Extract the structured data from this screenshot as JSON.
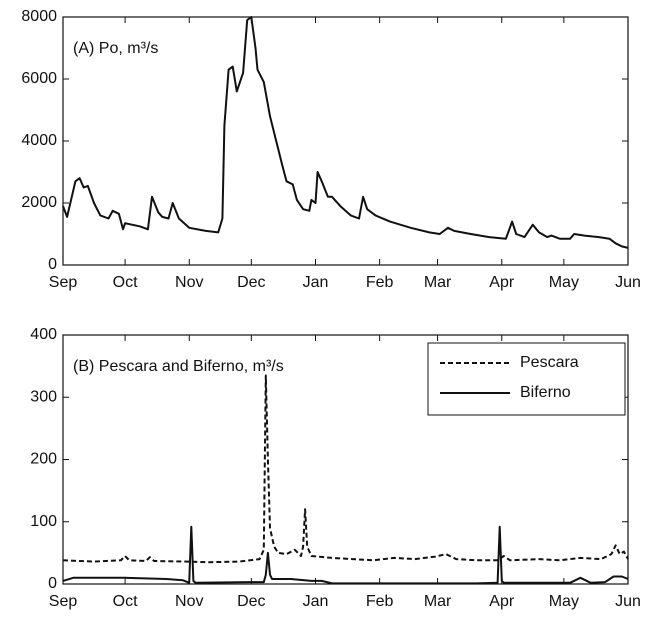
{
  "chart_data": [
    {
      "type": "line",
      "annotation": "(A) Po, m³/s",
      "xlim": [
        0,
        273
      ],
      "xticks": [
        {
          "value": 0,
          "label": "Sep"
        },
        {
          "value": 30,
          "label": "Oct"
        },
        {
          "value": 61,
          "label": "Nov"
        },
        {
          "value": 91,
          "label": "Dec"
        },
        {
          "value": 122,
          "label": "Jan"
        },
        {
          "value": 153,
          "label": "Feb"
        },
        {
          "value": 181,
          "label": "Mar"
        },
        {
          "value": 212,
          "label": "Apr"
        },
        {
          "value": 242,
          "label": "May"
        },
        {
          "value": 273,
          "label": "Jun"
        }
      ],
      "ylim": [
        0,
        8000
      ],
      "yticks": [
        0,
        2000,
        4000,
        6000,
        8000
      ],
      "series": [
        {
          "color": "#111111",
          "linestyle": "solid",
          "x": [
            0,
            2,
            6,
            8,
            10,
            12,
            15,
            18,
            22,
            24,
            27,
            29,
            30,
            37,
            41,
            43,
            46,
            48,
            51,
            53,
            56,
            61,
            69,
            75,
            77,
            78,
            80,
            82,
            84,
            87,
            89,
            91,
            93,
            94,
            97,
            100,
            103,
            106,
            108,
            111,
            113,
            116,
            119,
            120,
            122,
            123,
            125,
            128,
            130,
            134,
            139,
            143,
            145,
            147,
            151,
            158,
            168,
            177,
            182,
            186,
            189,
            197,
            206,
            214,
            217,
            219,
            223,
            227,
            230,
            234,
            236,
            240,
            245,
            247,
            252,
            259,
            264,
            267,
            270,
            273
          ],
          "values": [
            1900,
            1550,
            2700,
            2800,
            2500,
            2550,
            2000,
            1600,
            1500,
            1750,
            1650,
            1150,
            1350,
            1250,
            1150,
            2200,
            1700,
            1550,
            1500,
            2000,
            1500,
            1200,
            1100,
            1050,
            1500,
            4500,
            6300,
            6400,
            5600,
            6200,
            7900,
            8000,
            7000,
            6300,
            5900,
            4800,
            4000,
            3200,
            2700,
            2600,
            2100,
            1800,
            1750,
            2100,
            2000,
            3000,
            2700,
            2200,
            2200,
            1900,
            1600,
            1500,
            2200,
            1800,
            1600,
            1400,
            1200,
            1050,
            1000,
            1200,
            1100,
            1000,
            900,
            850,
            1400,
            1000,
            900,
            1300,
            1050,
            900,
            950,
            850,
            850,
            1000,
            950,
            900,
            850,
            700,
            600,
            550
          ]
        }
      ]
    },
    {
      "type": "line",
      "annotation": "(B) Pescara and Biferno, m³/s",
      "xlim": [
        0,
        273
      ],
      "xticks": [
        {
          "value": 0,
          "label": "Sep"
        },
        {
          "value": 30,
          "label": "Oct"
        },
        {
          "value": 61,
          "label": "Nov"
        },
        {
          "value": 91,
          "label": "Dec"
        },
        {
          "value": 122,
          "label": "Jan"
        },
        {
          "value": 153,
          "label": "Feb"
        },
        {
          "value": 181,
          "label": "Mar"
        },
        {
          "value": 212,
          "label": "Apr"
        },
        {
          "value": 242,
          "label": "May"
        },
        {
          "value": 273,
          "label": "Jun"
        }
      ],
      "ylim": [
        0,
        400
      ],
      "yticks": [
        0,
        100,
        200,
        300,
        400
      ],
      "legend": "upper right",
      "series": [
        {
          "name": "Pescara",
          "color": "#111111",
          "linestyle": "dashed",
          "x": [
            0,
            15,
            28,
            30,
            32,
            40,
            42,
            44,
            60,
            70,
            85,
            95,
            97,
            98,
            99,
            100,
            102,
            104,
            108,
            112,
            115,
            116,
            117,
            118,
            120,
            130,
            140,
            150,
            160,
            170,
            180,
            185,
            190,
            200,
            210,
            213,
            216,
            230,
            240,
            250,
            260,
            265,
            267,
            269,
            271,
            273
          ],
          "values": [
            38,
            36,
            38,
            45,
            38,
            37,
            43,
            37,
            36,
            35,
            36,
            40,
            55,
            335,
            200,
            90,
            60,
            50,
            48,
            55,
            45,
            60,
            120,
            60,
            45,
            42,
            40,
            38,
            42,
            40,
            44,
            48,
            40,
            38,
            38,
            45,
            38,
            40,
            38,
            42,
            40,
            48,
            62,
            48,
            52,
            40
          ]
        },
        {
          "name": "Biferno",
          "color": "#111111",
          "linestyle": "solid",
          "x": [
            0,
            5,
            30,
            50,
            58,
            61,
            62,
            63,
            64,
            90,
            97,
            98,
            99,
            100,
            101,
            110,
            120,
            125,
            130,
            200,
            210,
            211,
            212,
            213,
            245,
            250,
            255,
            262,
            266,
            270,
            273
          ],
          "values": [
            5,
            10,
            10,
            8,
            6,
            2,
            92,
            5,
            2,
            3,
            3,
            15,
            50,
            15,
            8,
            8,
            5,
            5,
            1,
            1,
            2,
            92,
            5,
            2,
            2,
            10,
            2,
            3,
            12,
            12,
            8
          ]
        }
      ]
    }
  ]
}
